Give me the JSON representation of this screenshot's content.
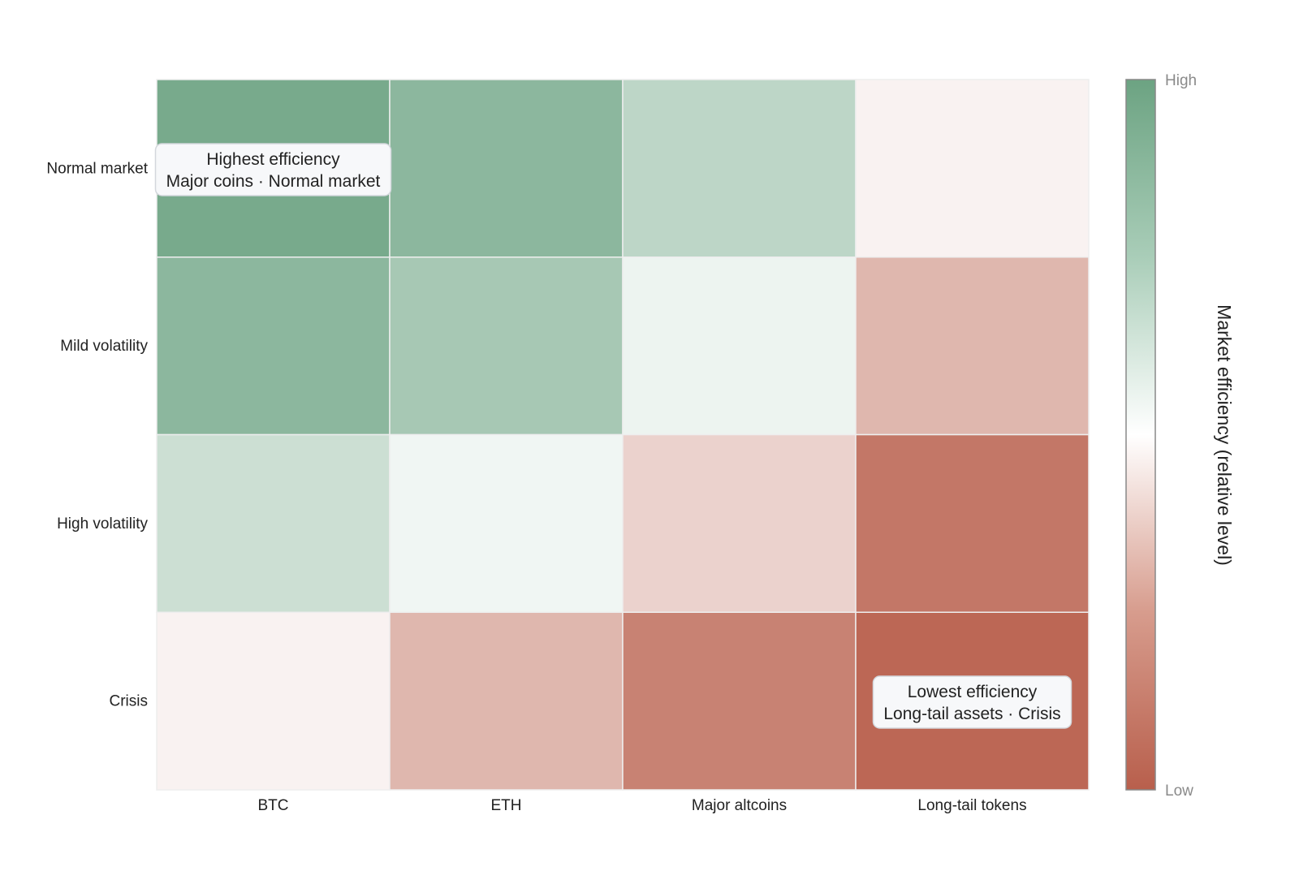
{
  "chart_data": {
    "type": "heatmap",
    "title": "",
    "xlabel": "",
    "ylabel": "",
    "x_categories": [
      "BTC",
      "ETH",
      "Major altcoins",
      "Long-tail tokens"
    ],
    "y_categories": [
      "Normal market",
      "Mild volatility",
      "High volatility",
      "Crisis"
    ],
    "values": [
      [
        0.92,
        0.78,
        0.45,
        -0.08
      ],
      [
        0.78,
        0.6,
        0.12,
        -0.45
      ],
      [
        0.35,
        0.1,
        -0.28,
        -0.85
      ],
      [
        -0.08,
        -0.45,
        -0.78,
        -0.95
      ]
    ],
    "zlim": [
      -1,
      1
    ],
    "colorscale": {
      "low": "#b85f4c",
      "mid": "#ffffff",
      "high": "#6ca382"
    },
    "colorbar": {
      "title": "Market efficiency (relative level)",
      "tick_high": "High",
      "tick_low": "Low"
    },
    "annotations": [
      {
        "row": 0,
        "col": 0,
        "line1": "Highest efficiency",
        "line2": "Major coins · Normal market"
      },
      {
        "row": 3,
        "col": 3,
        "line1": "Lowest efficiency",
        "line2": "Long-tail assets · Crisis"
      }
    ],
    "grid": false
  }
}
